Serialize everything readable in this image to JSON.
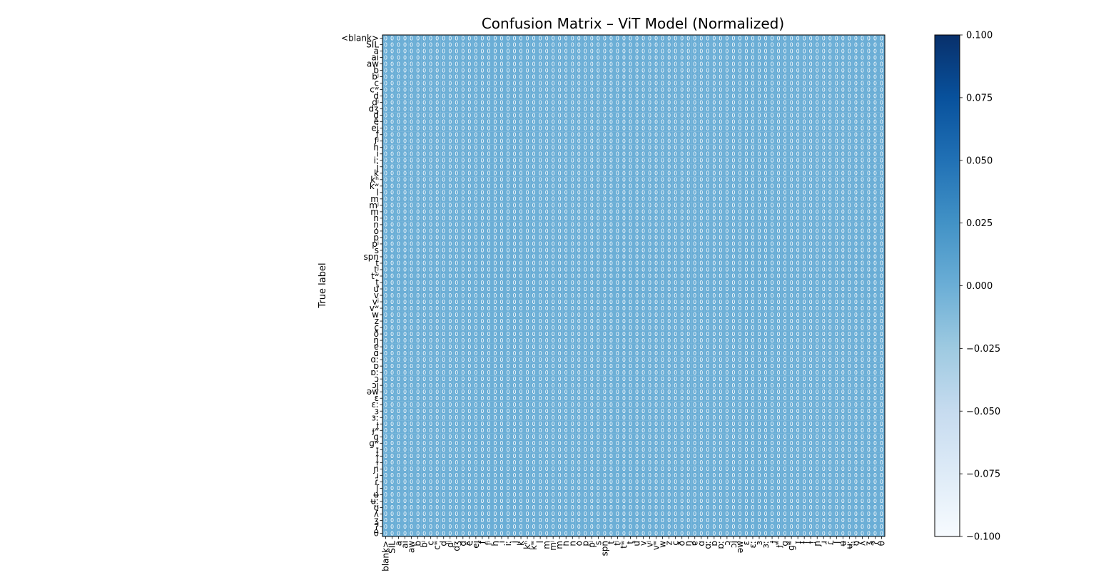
{
  "chart_data": {
    "type": "heatmap",
    "title": "Confusion Matrix – ViT Model (Normalized)",
    "ylabel": "True label",
    "xlabel": "",
    "labels": [
      "<blank>",
      "SIL",
      "a",
      "ai",
      "aw",
      "b",
      "bʲ",
      "c",
      "cʷ",
      "d",
      "dʲ",
      "dʒ",
      "d̪",
      "e",
      "ej",
      "f",
      "fʲ",
      "h",
      "i",
      "iː",
      "j",
      "k",
      "kʰ",
      "kʷ",
      "l",
      "m",
      "mʲ",
      "m̩",
      "n",
      "n̩",
      "o",
      "p",
      "pʲ",
      "s",
      "spn",
      "t",
      "tʲ",
      "tʷ",
      "t̪",
      "u",
      "v",
      "vʲ",
      "vʷ",
      "w",
      "z",
      "ç",
      "ð",
      "ŋ",
      "ɐ",
      "ɑ",
      "ɑː",
      "ɒ",
      "ɒː",
      "ɔ",
      "ɔj",
      "əw",
      "ɛ",
      "ɛː",
      "ɜ",
      "ɜː",
      "ɟ",
      "ɟʷ",
      "ɡ",
      "ɡʷ",
      "ɪ",
      "ɫ",
      "ɫ̩",
      "ɲ",
      "ɹ",
      "ɾ",
      "ʃ",
      "ʉ",
      "ʉː",
      "ʊ",
      "ʎ",
      "ʒ",
      "ʔ",
      "θ"
    ],
    "cell_value": 0,
    "cell_text": "0",
    "colorbar": {
      "vmin": -0.1,
      "vmax": 0.1,
      "ticks": [
        0.1,
        0.075,
        0.05,
        0.025,
        0.0,
        -0.025,
        -0.05,
        -0.075,
        -0.1
      ],
      "tick_labels": [
        "0.100",
        "0.075",
        "0.050",
        "0.025",
        "0.000",
        "−0.025",
        "−0.050",
        "−0.075",
        "−0.100"
      ]
    },
    "colormap": [
      "#f7fbff",
      "#deebf7",
      "#c6dbef",
      "#9ecae1",
      "#6baed6",
      "#4292c6",
      "#2171b5",
      "#08519c",
      "#08306b"
    ],
    "colors": {
      "cell_fill": "#6baed6",
      "cell_text": "#ffffff",
      "axis": "#000000"
    }
  }
}
